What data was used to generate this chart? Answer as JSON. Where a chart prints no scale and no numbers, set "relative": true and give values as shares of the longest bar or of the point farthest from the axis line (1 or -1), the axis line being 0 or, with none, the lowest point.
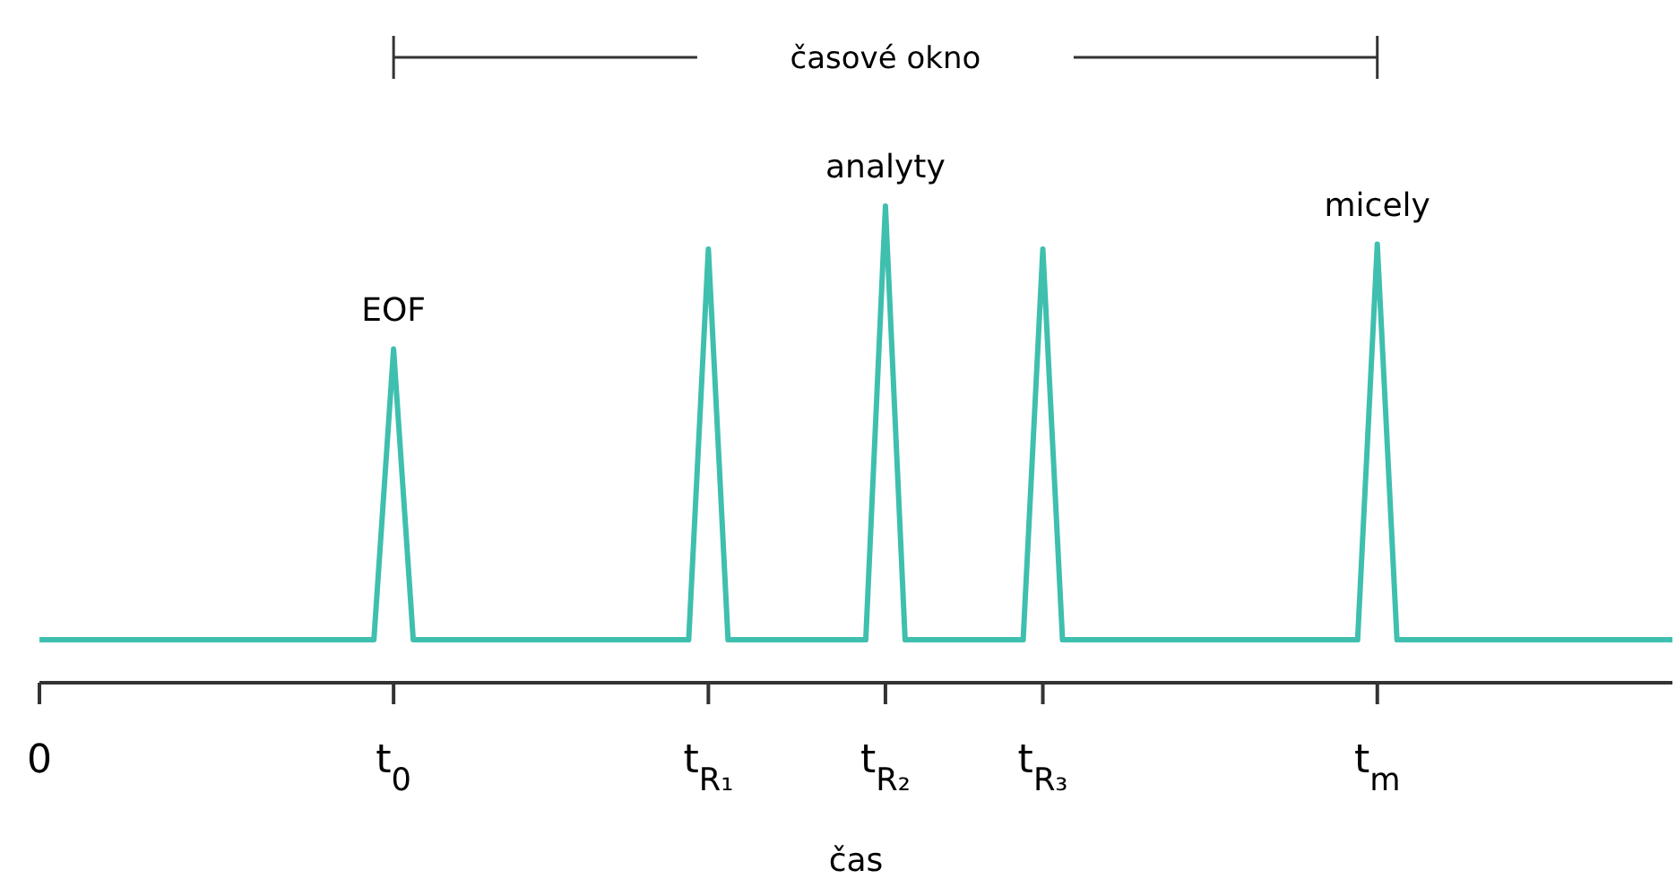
{
  "chart_data": {
    "type": "line",
    "relative": true,
    "xlabel": "čas",
    "color": "#3fbfae",
    "categories": [
      "0",
      null,
      null,
      null,
      null,
      null,
      null,
      null,
      null,
      null,
      null,
      null,
      null,
      null,
      null,
      null,
      null,
      null,
      "t$_{0}$",
      null,
      null,
      null,
      null,
      null,
      null,
      null,
      null,
      null,
      null,
      null,
      null,
      null,
      null,
      null,
      "t$_{R₁}$",
      null,
      null,
      null,
      null,
      null,
      null,
      null,
      null,
      "t$_{R₂}$",
      null,
      null,
      null,
      null,
      null,
      null,
      null,
      "t$_{R₃}$",
      null,
      null,
      null,
      null,
      null,
      null,
      null,
      null,
      null,
      null,
      null,
      null,
      null,
      null,
      null,
      null,
      "t$_{m}$",
      null,
      null,
      null,
      null,
      null,
      null,
      null,
      null,
      null,
      null,
      null,
      null,
      null,
      null,
      null
    ],
    "values": [
      0.09,
      0.09,
      0.09,
      0.09,
      0.09,
      0.09,
      0.09,
      0.09,
      0.09,
      0.09,
      0.09,
      0.09,
      0.09,
      0.09,
      0.09,
      0.09,
      0.09,
      0.09,
      0.7,
      0.09,
      0.09,
      0.09,
      0.09,
      0.09,
      0.09,
      0.09,
      0.09,
      0.09,
      0.09,
      0.09,
      0.09,
      0.09,
      0.09,
      0.09,
      0.91,
      0.09,
      0.09,
      0.09,
      0.09,
      0.09,
      0.09,
      0.09,
      0.09,
      1,
      0.09,
      0.09,
      0.09,
      0.09,
      0.09,
      0.09,
      0.09,
      0.91,
      0.09,
      0.09,
      0.09,
      0.09,
      0.09,
      0.09,
      0.09,
      0.09,
      0.09,
      0.09,
      0.09,
      0.09,
      0.09,
      0.09,
      0.09,
      0.09,
      0.92,
      0.09,
      0.09,
      0.09,
      0.09,
      0.09,
      0.09,
      0.09,
      0.09,
      0.09,
      0.09,
      0.09,
      0.09,
      0.09,
      0.09,
      0.09
    ],
    "annotations": [
      "časové okno",
      {
        "text": "EOF",
        "x": "t$_{0}$",
        "y": 0.7
      },
      {
        "text": "analyty",
        "x": "t$_{R₂}$",
        "y": 1
      },
      {
        "text": "micely",
        "x": "t$_{m}$",
        "y": 0.92
      }
    ]
  }
}
